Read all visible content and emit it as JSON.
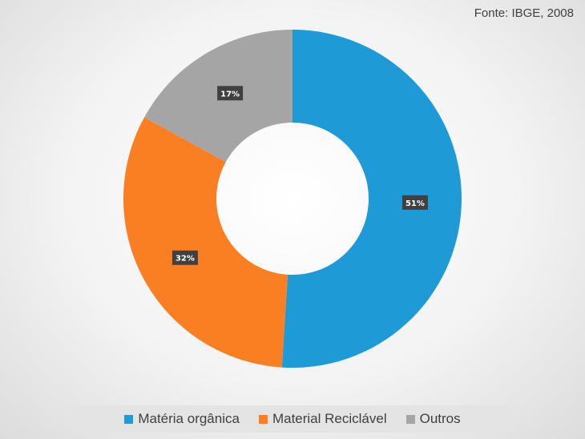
{
  "source": "Fonte: IBGE, 2008",
  "chart_data": {
    "type": "pie",
    "variant": "doughnut",
    "start_angle_deg": 0,
    "categories": [
      "Matéria orgânica",
      "Material Reciclável",
      "Outros"
    ],
    "values": [
      51,
      32,
      17
    ],
    "labels": [
      "51%",
      "32%",
      "17%"
    ],
    "colors": [
      "#1e9bd7",
      "#fa7f22",
      "#a5a5a5"
    ],
    "legend_position": "bottom"
  }
}
